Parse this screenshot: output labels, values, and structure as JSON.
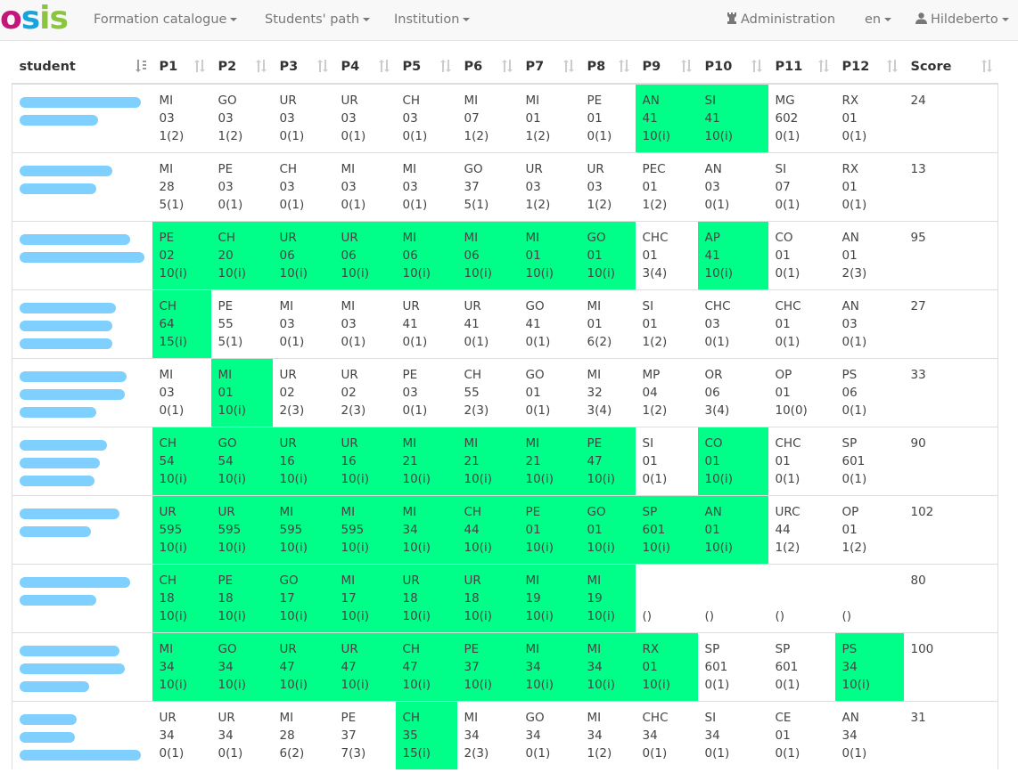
{
  "nav": {
    "brand": "osis",
    "brand_parts": [
      "o",
      "s",
      "is"
    ],
    "items": [
      "Formation catalogue",
      "Students' path",
      "Institution"
    ],
    "admin": "Administration",
    "lang": "en",
    "user": "Hildeberto"
  },
  "colors": {
    "success_cell": "#00ff88",
    "redaction": "#7fd0ff"
  },
  "table": {
    "headers": [
      "student",
      "P1",
      "P2",
      "P3",
      "P4",
      "P5",
      "P6",
      "P7",
      "P8",
      "P9",
      "P10",
      "P11",
      "P12",
      "Score"
    ],
    "rows": [
      {
        "score": "24",
        "cells": [
          {
            "l": [
              "MI",
              "03",
              "1(2)"
            ],
            "ok": false
          },
          {
            "l": [
              "GO",
              "03",
              "1(2)"
            ],
            "ok": false
          },
          {
            "l": [
              "UR",
              "03",
              "0(1)"
            ],
            "ok": false
          },
          {
            "l": [
              "UR",
              "03",
              "0(1)"
            ],
            "ok": false
          },
          {
            "l": [
              "CH",
              "03",
              "0(1)"
            ],
            "ok": false
          },
          {
            "l": [
              "MI",
              "07",
              "1(2)"
            ],
            "ok": false
          },
          {
            "l": [
              "MI",
              "01",
              "1(2)"
            ],
            "ok": false
          },
          {
            "l": [
              "PE",
              "01",
              "0(1)"
            ],
            "ok": false
          },
          {
            "l": [
              "AN",
              "41",
              "10(i)"
            ],
            "ok": true
          },
          {
            "l": [
              "SI",
              "41",
              "10(i)"
            ],
            "ok": true
          },
          {
            "l": [
              "MG",
              "602",
              "0(1)"
            ],
            "ok": false
          },
          {
            "l": [
              "RX",
              "01",
              "0(1)"
            ],
            "ok": false
          }
        ]
      },
      {
        "score": "13",
        "cells": [
          {
            "l": [
              "MI",
              "28",
              "5(1)"
            ],
            "ok": false
          },
          {
            "l": [
              "PE",
              "03",
              "0(1)"
            ],
            "ok": false
          },
          {
            "l": [
              "CH",
              "03",
              "0(1)"
            ],
            "ok": false
          },
          {
            "l": [
              "MI",
              "03",
              "0(1)"
            ],
            "ok": false
          },
          {
            "l": [
              "MI",
              "03",
              "0(1)"
            ],
            "ok": false
          },
          {
            "l": [
              "GO",
              "37",
              "5(1)"
            ],
            "ok": false
          },
          {
            "l": [
              "UR",
              "03",
              "1(2)"
            ],
            "ok": false
          },
          {
            "l": [
              "UR",
              "03",
              "1(2)"
            ],
            "ok": false
          },
          {
            "l": [
              "PEC",
              "01",
              "1(2)"
            ],
            "ok": false
          },
          {
            "l": [
              "AN",
              "03",
              "0(1)"
            ],
            "ok": false
          },
          {
            "l": [
              "SI",
              "07",
              "0(1)"
            ],
            "ok": false
          },
          {
            "l": [
              "RX",
              "01",
              "0(1)"
            ],
            "ok": false
          }
        ]
      },
      {
        "score": "95",
        "cells": [
          {
            "l": [
              "PE",
              "02",
              "10(i)"
            ],
            "ok": true
          },
          {
            "l": [
              "CH",
              "20",
              "10(i)"
            ],
            "ok": true
          },
          {
            "l": [
              "UR",
              "06",
              "10(i)"
            ],
            "ok": true
          },
          {
            "l": [
              "UR",
              "06",
              "10(i)"
            ],
            "ok": true
          },
          {
            "l": [
              "MI",
              "06",
              "10(i)"
            ],
            "ok": true
          },
          {
            "l": [
              "MI",
              "06",
              "10(i)"
            ],
            "ok": true
          },
          {
            "l": [
              "MI",
              "01",
              "10(i)"
            ],
            "ok": true
          },
          {
            "l": [
              "GO",
              "01",
              "10(i)"
            ],
            "ok": true
          },
          {
            "l": [
              "CHC",
              "01",
              "3(4)"
            ],
            "ok": false
          },
          {
            "l": [
              "AP",
              "41",
              "10(i)"
            ],
            "ok": true
          },
          {
            "l": [
              "CO",
              "01",
              "0(1)"
            ],
            "ok": false
          },
          {
            "l": [
              "AN",
              "01",
              "2(3)"
            ],
            "ok": false
          }
        ]
      },
      {
        "score": "27",
        "cells": [
          {
            "l": [
              "CH",
              "64",
              "15(i)"
            ],
            "ok": true
          },
          {
            "l": [
              "PE",
              "55",
              "5(1)"
            ],
            "ok": false
          },
          {
            "l": [
              "MI",
              "03",
              "0(1)"
            ],
            "ok": false
          },
          {
            "l": [
              "MI",
              "03",
              "0(1)"
            ],
            "ok": false
          },
          {
            "l": [
              "UR",
              "41",
              "0(1)"
            ],
            "ok": false
          },
          {
            "l": [
              "UR",
              "41",
              "0(1)"
            ],
            "ok": false
          },
          {
            "l": [
              "GO",
              "41",
              "0(1)"
            ],
            "ok": false
          },
          {
            "l": [
              "MI",
              "01",
              "6(2)"
            ],
            "ok": false
          },
          {
            "l": [
              "SI",
              "01",
              "1(2)"
            ],
            "ok": false
          },
          {
            "l": [
              "CHC",
              "03",
              "0(1)"
            ],
            "ok": false
          },
          {
            "l": [
              "CHC",
              "01",
              "0(1)"
            ],
            "ok": false
          },
          {
            "l": [
              "AN",
              "03",
              "0(1)"
            ],
            "ok": false
          }
        ]
      },
      {
        "score": "33",
        "cells": [
          {
            "l": [
              "MI",
              "03",
              "0(1)"
            ],
            "ok": false
          },
          {
            "l": [
              "MI",
              "01",
              "10(i)"
            ],
            "ok": true
          },
          {
            "l": [
              "UR",
              "02",
              "2(3)"
            ],
            "ok": false
          },
          {
            "l": [
              "UR",
              "02",
              "2(3)"
            ],
            "ok": false
          },
          {
            "l": [
              "PE",
              "03",
              "0(1)"
            ],
            "ok": false
          },
          {
            "l": [
              "CH",
              "55",
              "2(3)"
            ],
            "ok": false
          },
          {
            "l": [
              "GO",
              "01",
              "0(1)"
            ],
            "ok": false
          },
          {
            "l": [
              "MI",
              "32",
              "3(4)"
            ],
            "ok": false
          },
          {
            "l": [
              "MP",
              "04",
              "1(2)"
            ],
            "ok": false
          },
          {
            "l": [
              "OR",
              "06",
              "3(4)"
            ],
            "ok": false
          },
          {
            "l": [
              "OP",
              "01",
              "10(0)"
            ],
            "ok": false
          },
          {
            "l": [
              "PS",
              "06",
              "0(1)"
            ],
            "ok": false
          }
        ]
      },
      {
        "score": "90",
        "cells": [
          {
            "l": [
              "CH",
              "54",
              "10(i)"
            ],
            "ok": true
          },
          {
            "l": [
              "GO",
              "54",
              "10(i)"
            ],
            "ok": true
          },
          {
            "l": [
              "UR",
              "16",
              "10(i)"
            ],
            "ok": true
          },
          {
            "l": [
              "UR",
              "16",
              "10(i)"
            ],
            "ok": true
          },
          {
            "l": [
              "MI",
              "21",
              "10(i)"
            ],
            "ok": true
          },
          {
            "l": [
              "MI",
              "21",
              "10(i)"
            ],
            "ok": true
          },
          {
            "l": [
              "MI",
              "21",
              "10(i)"
            ],
            "ok": true
          },
          {
            "l": [
              "PE",
              "47",
              "10(i)"
            ],
            "ok": true
          },
          {
            "l": [
              "SI",
              "01",
              "0(1)"
            ],
            "ok": false
          },
          {
            "l": [
              "CO",
              "01",
              "10(i)"
            ],
            "ok": true
          },
          {
            "l": [
              "CHC",
              "01",
              "0(1)"
            ],
            "ok": false
          },
          {
            "l": [
              "SP",
              "601",
              "0(1)"
            ],
            "ok": false
          }
        ]
      },
      {
        "score": "102",
        "cells": [
          {
            "l": [
              "UR",
              "595",
              "10(i)"
            ],
            "ok": true
          },
          {
            "l": [
              "UR",
              "595",
              "10(i)"
            ],
            "ok": true
          },
          {
            "l": [
              "MI",
              "595",
              "10(i)"
            ],
            "ok": true
          },
          {
            "l": [
              "MI",
              "595",
              "10(i)"
            ],
            "ok": true
          },
          {
            "l": [
              "MI",
              "34",
              "10(i)"
            ],
            "ok": true
          },
          {
            "l": [
              "CH",
              "44",
              "10(i)"
            ],
            "ok": true
          },
          {
            "l": [
              "PE",
              "01",
              "10(i)"
            ],
            "ok": true
          },
          {
            "l": [
              "GO",
              "01",
              "10(i)"
            ],
            "ok": true
          },
          {
            "l": [
              "SP",
              "601",
              "10(i)"
            ],
            "ok": true
          },
          {
            "l": [
              "AN",
              "01",
              "10(i)"
            ],
            "ok": true
          },
          {
            "l": [
              "URC",
              "44",
              "1(2)"
            ],
            "ok": false
          },
          {
            "l": [
              "OP",
              "01",
              "1(2)"
            ],
            "ok": false
          }
        ]
      },
      {
        "score": "80",
        "cells": [
          {
            "l": [
              "CH",
              "18",
              "10(i)"
            ],
            "ok": true
          },
          {
            "l": [
              "PE",
              "18",
              "10(i)"
            ],
            "ok": true
          },
          {
            "l": [
              "GO",
              "17",
              "10(i)"
            ],
            "ok": true
          },
          {
            "l": [
              "MI",
              "17",
              "10(i)"
            ],
            "ok": true
          },
          {
            "l": [
              "UR",
              "18",
              "10(i)"
            ],
            "ok": true
          },
          {
            "l": [
              "UR",
              "18",
              "10(i)"
            ],
            "ok": true
          },
          {
            "l": [
              "MI",
              "19",
              "10(i)"
            ],
            "ok": true
          },
          {
            "l": [
              "MI",
              "19",
              "10(i)"
            ],
            "ok": true
          },
          {
            "l": [
              "",
              "",
              "()"
            ],
            "ok": false
          },
          {
            "l": [
              "",
              "",
              "()"
            ],
            "ok": false
          },
          {
            "l": [
              "",
              "",
              "()"
            ],
            "ok": false
          },
          {
            "l": [
              "",
              "",
              "()"
            ],
            "ok": false
          }
        ]
      },
      {
        "score": "100",
        "cells": [
          {
            "l": [
              "MI",
              "34",
              "10(i)"
            ],
            "ok": true
          },
          {
            "l": [
              "GO",
              "34",
              "10(i)"
            ],
            "ok": true
          },
          {
            "l": [
              "UR",
              "47",
              "10(i)"
            ],
            "ok": true
          },
          {
            "l": [
              "UR",
              "47",
              "10(i)"
            ],
            "ok": true
          },
          {
            "l": [
              "CH",
              "47",
              "10(i)"
            ],
            "ok": true
          },
          {
            "l": [
              "PE",
              "37",
              "10(i)"
            ],
            "ok": true
          },
          {
            "l": [
              "MI",
              "34",
              "10(i)"
            ],
            "ok": true
          },
          {
            "l": [
              "MI",
              "34",
              "10(i)"
            ],
            "ok": true
          },
          {
            "l": [
              "RX",
              "01",
              "10(i)"
            ],
            "ok": true
          },
          {
            "l": [
              "SP",
              "601",
              "0(1)"
            ],
            "ok": false
          },
          {
            "l": [
              "SP",
              "601",
              "0(1)"
            ],
            "ok": false
          },
          {
            "l": [
              "PS",
              "34",
              "10(i)"
            ],
            "ok": true
          }
        ]
      },
      {
        "score": "31",
        "cells": [
          {
            "l": [
              "UR",
              "34",
              "0(1)"
            ],
            "ok": false
          },
          {
            "l": [
              "UR",
              "34",
              "0(1)"
            ],
            "ok": false
          },
          {
            "l": [
              "MI",
              "28",
              "6(2)"
            ],
            "ok": false
          },
          {
            "l": [
              "PE",
              "37",
              "7(3)"
            ],
            "ok": false
          },
          {
            "l": [
              "CH",
              "35",
              "15(i)"
            ],
            "ok": true
          },
          {
            "l": [
              "MI",
              "34",
              "2(3)"
            ],
            "ok": false
          },
          {
            "l": [
              "GO",
              "34",
              "0(1)"
            ],
            "ok": false
          },
          {
            "l": [
              "MI",
              "34",
              "1(2)"
            ],
            "ok": false
          },
          {
            "l": [
              "CHC",
              "34",
              "0(1)"
            ],
            "ok": false
          },
          {
            "l": [
              "SI",
              "34",
              "0(1)"
            ],
            "ok": false
          },
          {
            "l": [
              "CE",
              "01",
              "0(1)"
            ],
            "ok": false
          },
          {
            "l": [
              "AN",
              "34",
              "0(1)"
            ],
            "ok": false
          }
        ]
      }
    ]
  }
}
